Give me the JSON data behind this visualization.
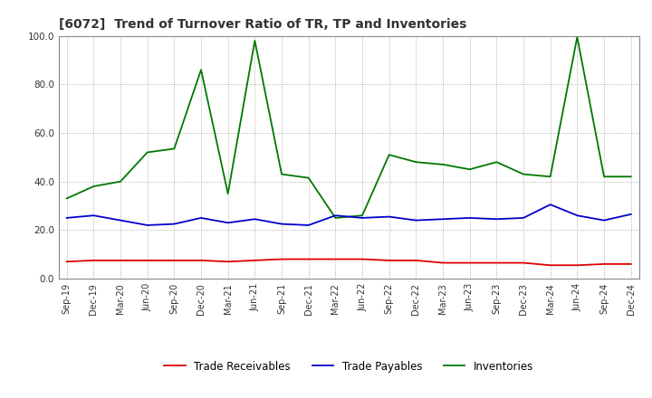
{
  "title": "[6072]  Trend of Turnover Ratio of TR, TP and Inventories",
  "xlabels": [
    "Sep-19",
    "Dec-19",
    "Mar-20",
    "Jun-20",
    "Sep-20",
    "Dec-20",
    "Mar-21",
    "Jun-21",
    "Sep-21",
    "Dec-21",
    "Mar-22",
    "Jun-22",
    "Sep-22",
    "Dec-22",
    "Mar-23",
    "Jun-23",
    "Sep-23",
    "Dec-23",
    "Mar-24",
    "Jun-24",
    "Sep-24",
    "Dec-24"
  ],
  "trade_receivables": [
    7.0,
    7.5,
    7.5,
    7.5,
    7.5,
    7.5,
    7.0,
    7.5,
    8.0,
    8.0,
    8.0,
    8.0,
    7.5,
    7.5,
    6.5,
    6.5,
    6.5,
    6.5,
    5.5,
    5.5,
    6.0,
    6.0
  ],
  "trade_payables": [
    25.0,
    26.0,
    24.0,
    22.0,
    22.5,
    25.0,
    23.0,
    24.5,
    22.5,
    22.0,
    26.0,
    25.0,
    25.5,
    24.0,
    24.5,
    25.0,
    24.5,
    25.0,
    30.5,
    26.0,
    24.0,
    26.5
  ],
  "inventories": [
    33.0,
    38.0,
    40.0,
    52.0,
    53.5,
    86.0,
    35.0,
    98.0,
    43.0,
    41.5,
    25.0,
    26.0,
    51.0,
    48.0,
    47.0,
    45.0,
    48.0,
    43.0,
    42.0,
    99.5,
    42.0,
    42.0
  ],
  "ylim": [
    0.0,
    100.0
  ],
  "yticks": [
    0.0,
    20.0,
    40.0,
    60.0,
    80.0,
    100.0
  ],
  "color_tr": "#dd0000",
  "color_tp": "#0000cc",
  "color_inv": "#007700",
  "legend_labels": [
    "Trade Receivables",
    "Trade Payables",
    "Inventories"
  ],
  "background_color": "#ffffff",
  "grid_color": "#999999",
  "title_color": "#333333"
}
